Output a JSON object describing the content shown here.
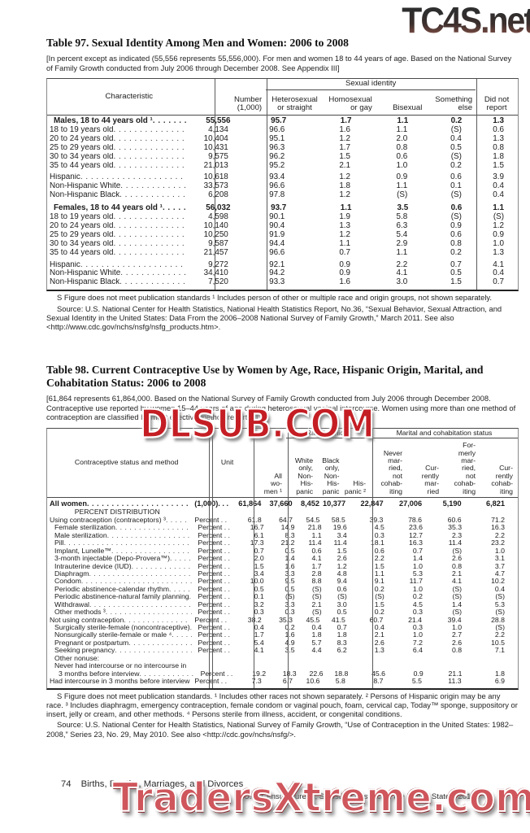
{
  "watermarks": {
    "top": "TC4S.net",
    "middle": "DLSUB.COM",
    "bottom": "TradersXtreme.com"
  },
  "table97": {
    "title": "Table 97. Sexual Identity Among Men and Women: 2006 to 2008",
    "note": "[In percent except as indicated (55,556 represents 55,556,000). For men and women 18 to 44 years of age. Based on the National Survey of Family Growth conducted from July 2006 through December 2008. See Appendix III]",
    "header": {
      "characteristic": "Characteristic",
      "number": "Number\n(1,000)",
      "group": "Sexual identity",
      "cols": [
        "Heterosexual\nor straight",
        "Homosexual\nor gay",
        "Bisexual",
        "Something\nelse"
      ],
      "didnot": "Did not\nreport"
    },
    "rows": [
      {
        "label": "Males, 18 to 44 years old ¹",
        "bold": true,
        "gap": false,
        "values": [
          "55,556",
          "95.7",
          "1.7",
          "1.1",
          "0.2",
          "1.3"
        ]
      },
      {
        "label": "18 to 19 years old",
        "bold": false,
        "gap": false,
        "values": [
          "4,134",
          "96.6",
          "1.6",
          "1.1",
          "(S)",
          "0.6"
        ]
      },
      {
        "label": "20 to 24 years old",
        "bold": false,
        "gap": false,
        "values": [
          "10,404",
          "95.1",
          "1.2",
          "2.0",
          "0.4",
          "1.3"
        ]
      },
      {
        "label": "25 to 29 years old",
        "bold": false,
        "gap": false,
        "values": [
          "10,431",
          "96.3",
          "1.7",
          "0.8",
          "0.5",
          "0.8"
        ]
      },
      {
        "label": "30 to 34 years old",
        "bold": false,
        "gap": false,
        "values": [
          "9,575",
          "96.2",
          "1.5",
          "0.6",
          "(S)",
          "1.8"
        ]
      },
      {
        "label": "35 to 44 years old",
        "bold": false,
        "gap": false,
        "values": [
          "21,013",
          "95.2",
          "2.1",
          "1.0",
          "0.2",
          "1.5"
        ]
      },
      {
        "label": "Hispanic",
        "bold": false,
        "gap": true,
        "values": [
          "10,618",
          "93.4",
          "1.2",
          "0.9",
          "0.6",
          "3.9"
        ]
      },
      {
        "label": "Non-Hispanic White",
        "bold": false,
        "gap": false,
        "values": [
          "33,573",
          "96.6",
          "1.8",
          "1.1",
          "0.1",
          "0.4"
        ]
      },
      {
        "label": "Non-Hispanic Black",
        "bold": false,
        "gap": false,
        "values": [
          "6,208",
          "97.8",
          "1.2",
          "(S)",
          "(S)",
          "0.4"
        ]
      },
      {
        "label": "Females, 18 to 44 years old ¹",
        "bold": true,
        "gap": true,
        "values": [
          "56,032",
          "93.7",
          "1.1",
          "3.5",
          "0.6",
          "1.1"
        ]
      },
      {
        "label": "18 to 19 years old",
        "bold": false,
        "gap": false,
        "values": [
          "4,598",
          "90.1",
          "1.9",
          "5.8",
          "(S)",
          "(S)"
        ]
      },
      {
        "label": "20 to 24 years old",
        "bold": false,
        "gap": false,
        "values": [
          "10,140",
          "90.4",
          "1.3",
          "6.3",
          "0.9",
          "1.2"
        ]
      },
      {
        "label": "25 to 29 years old",
        "bold": false,
        "gap": false,
        "values": [
          "10,250",
          "91.9",
          "1.2",
          "5.4",
          "0.6",
          "0.9"
        ]
      },
      {
        "label": "30 to 34 years old",
        "bold": false,
        "gap": false,
        "values": [
          "9,587",
          "94.4",
          "1.1",
          "2.9",
          "0.8",
          "1.0"
        ]
      },
      {
        "label": "35 to 44 years old",
        "bold": false,
        "gap": false,
        "values": [
          "21,457",
          "96.6",
          "0.7",
          "1.1",
          "0.2",
          "1.3"
        ]
      },
      {
        "label": "Hispanic",
        "bold": false,
        "gap": true,
        "values": [
          "9,272",
          "92.1",
          "0.9",
          "2.2",
          "0.7",
          "4.1"
        ]
      },
      {
        "label": "Non-Hispanic White",
        "bold": false,
        "gap": false,
        "values": [
          "34,410",
          "94.2",
          "0.9",
          "4.1",
          "0.5",
          "0.4"
        ]
      },
      {
        "label": "Non-Hispanic Black",
        "bold": false,
        "gap": false,
        "values": [
          "7,520",
          "93.3",
          "1.6",
          "3.0",
          "1.5",
          "0.7"
        ]
      }
    ],
    "footnote1": "S Figure does not meet publication standards ¹ Includes person of other or multiple race and origin groups, not shown separately.",
    "footnote2": "Source: U.S. National Center for Health Statistics, National Health Statistics Report, No.36, “Sexual Behavior, Sexual Attraction, and Sexual Identity in the United States: Data From the 2006–2008 National Survey of Family Growth,” March 2011. See also <http://www.cdc.gov/nchs/nsfg/nsfg_products.htm>."
  },
  "table98": {
    "title": "Table 98. Current Contraceptive Use by Women by Age, Race, Hispanic Origin, Marital, and Cohabitation Status: 2006 to 2008",
    "note": "[61,864 represents 61,864,000. Based on the National Survey of Family Growth conducted from July 2006 through December 2008. Contraceptive use reported by women 15–44 years of age during heterosexual vaginal intercourse. Women using more than one method of contraception are classified by most effective method reported]",
    "header": {
      "label": "Contraceptive status and method",
      "unit": "Unit",
      "all_women": "All\nwo-\nmen ¹",
      "race_group": "Race/ethnicity",
      "race_cols": [
        "White\nonly,\nNon-\nHis-\npanic",
        "Black\nonly,\nNon-\nHis-\npanic",
        "His-\npanic ²"
      ],
      "marital_group": "Marital and cohabitation status",
      "marital_cols": [
        "Never\nmar-\nried,\nnot\ncohab-\niting",
        "Cur-\nrently\nmar-\nried",
        "For-\nmerly\nmar-\nried,\nnot\ncohab-\niting",
        "Cur-\nrently\ncohab-\niting"
      ]
    },
    "rows": [
      {
        "label": "All women",
        "unit": "(1,000). . .",
        "indent": 0,
        "bold": true,
        "center": false,
        "values": [
          "61,864",
          "37,660",
          "8,452",
          "10,377",
          "22,847",
          "27,006",
          "5,190",
          "6,821"
        ]
      },
      {
        "label": "PERCENT DISTRIBUTION",
        "unit": "",
        "indent": 0,
        "bold": false,
        "center": true,
        "values": []
      },
      {
        "label": "Using contraception (contraceptors) ³",
        "unit": "Percent . .",
        "indent": 0,
        "bold": false,
        "center": false,
        "values": [
          "61.8",
          "64.7",
          "54.5",
          "58.5",
          "39.3",
          "78.6",
          "60.6",
          "71.2"
        ]
      },
      {
        "label": "Female sterilization",
        "unit": "Percent . .",
        "indent": 1,
        "bold": false,
        "center": false,
        "values": [
          "16.7",
          "14.9",
          "21.8",
          "19.6",
          "4.5",
          "23.6",
          "35.3",
          "16.3"
        ]
      },
      {
        "label": "Male sterilization",
        "unit": "Percent . .",
        "indent": 1,
        "bold": false,
        "center": false,
        "values": [
          "6.1",
          "8.3",
          "1.1",
          "3.4",
          "0.3",
          "12.7",
          "2.3",
          "2.2"
        ]
      },
      {
        "label": "Pill",
        "unit": "Percent . .",
        "indent": 1,
        "bold": false,
        "center": false,
        "values": [
          "17.3",
          "21.2",
          "11.4",
          "11.4",
          "18.1",
          "16.3",
          "11.4",
          "23.2"
        ]
      },
      {
        "label": "Implant, Lunelle™",
        "unit": "Percent . .",
        "indent": 1,
        "bold": false,
        "center": false,
        "values": [
          "0.7",
          "0.5",
          "0.6",
          "1.5",
          "0.6",
          "0.7",
          "(S)",
          "1.0"
        ]
      },
      {
        "label": "3-month injectable (Depo-Provera™)",
        "unit": "Percent . .",
        "indent": 1,
        "bold": false,
        "center": false,
        "values": [
          "2.0",
          "1.4",
          "4.1",
          "2.6",
          "2.2",
          "1.4",
          "2.6",
          "3.1"
        ]
      },
      {
        "label": "Intrauterine device (IUD)",
        "unit": "Percent . .",
        "indent": 1,
        "bold": false,
        "center": false,
        "values": [
          "1.5",
          "1.6",
          "1.7",
          "1.2",
          "1.5",
          "1.0",
          "0.8",
          "3.7"
        ]
      },
      {
        "label": "Diaphragm",
        "unit": "Percent . .",
        "indent": 1,
        "bold": false,
        "center": false,
        "values": [
          "3.4",
          "3.3",
          "2.8",
          "4.8",
          "1.1",
          "5.3",
          "2.1",
          "4.7"
        ]
      },
      {
        "label": "Condom",
        "unit": "Percent . .",
        "indent": 1,
        "bold": false,
        "center": false,
        "values": [
          "10.0",
          "9.5",
          "8.8",
          "9.4",
          "9.1",
          "11.7",
          "4.1",
          "10.2"
        ]
      },
      {
        "label": "Periodic abstinence-calendar rhythm",
        "unit": "Percent . .",
        "indent": 1,
        "bold": false,
        "center": false,
        "values": [
          "0.5",
          "0.5",
          "(S)",
          "0.6",
          "0.2",
          "1.0",
          "(S)",
          "0.4"
        ]
      },
      {
        "label": "Periodic abstinence-natural family planning",
        "unit": "Percent . .",
        "indent": 1,
        "bold": false,
        "center": false,
        "values": [
          "0.1",
          "(S)",
          "(S)",
          "(S)",
          "(S)",
          "0.2",
          "(S)",
          "(S)"
        ]
      },
      {
        "label": "Withdrawal",
        "unit": "Percent . .",
        "indent": 1,
        "bold": false,
        "center": false,
        "values": [
          "3.2",
          "3.3",
          "2.1",
          "3.0",
          "1.5",
          "4.5",
          "1.4",
          "5.3"
        ]
      },
      {
        "label": "Other methods ³",
        "unit": "Percent . .",
        "indent": 1,
        "bold": false,
        "center": false,
        "values": [
          "0.3",
          "0.3",
          "(S)",
          "0.5",
          "0.2",
          "0.3",
          "(S)",
          "(S)"
        ]
      },
      {
        "label": "Not using contraception",
        "unit": "Percent . .",
        "indent": 0,
        "bold": false,
        "center": false,
        "values": [
          "38.2",
          "35.3",
          "45.5",
          "41.5",
          "60.7",
          "21.4",
          "39.4",
          "28.8"
        ]
      },
      {
        "label": "Surgically sterile-female (noncontraceptive)",
        "unit": "Percent . .",
        "indent": 1,
        "bold": false,
        "center": false,
        "values": [
          "0.4",
          "0.2",
          "0.4",
          "0.7",
          "0.4",
          "0.3",
          "1.0",
          "(S)"
        ]
      },
      {
        "label": "Nonsurgically sterile-female or male ⁴",
        "unit": "Percent . .",
        "indent": 1,
        "bold": false,
        "center": false,
        "values": [
          "1.7",
          "1.6",
          "1.8",
          "1.8",
          "2.1",
          "1.0",
          "2.7",
          "2.2"
        ]
      },
      {
        "label": "Pregnant or postpartum",
        "unit": "Percent . .",
        "indent": 1,
        "bold": false,
        "center": false,
        "values": [
          "5.4",
          "4.9",
          "5.7",
          "8.3",
          "2.6",
          "7.2",
          "2.6",
          "10.5"
        ]
      },
      {
        "label": "Seeking pregnancy",
        "unit": "Percent . .",
        "indent": 1,
        "bold": false,
        "center": false,
        "values": [
          "4.1",
          "3.5",
          "4.4",
          "6.2",
          "1.3",
          "6.4",
          "0.8",
          "7.1"
        ]
      },
      {
        "label": "Other nonuse:",
        "unit": "",
        "indent": 1,
        "bold": false,
        "center": false,
        "values": []
      },
      {
        "label": "Never had intercourse or no intercourse in",
        "unit": "",
        "indent": 1,
        "bold": false,
        "center": false,
        "values": []
      },
      {
        "label": "3 months before interview",
        "unit": "Percent . .",
        "indent": 2,
        "bold": false,
        "center": false,
        "values": [
          "19.2",
          "18.3",
          "22.6",
          "18.8",
          "45.6",
          "0.9",
          "21.1",
          "1.8"
        ]
      },
      {
        "label": "Had intercourse in 3 months before interview",
        "unit": "Percent . .",
        "indent": 0,
        "bold": false,
        "center": false,
        "values": [
          "7.3",
          "6.7",
          "10.6",
          "5.8",
          "8.7",
          "5.5",
          "11.3",
          "6.9"
        ]
      }
    ],
    "footnote1": "S Figure does not meet publication standards. ¹ Includes other races not shown separately. ² Persons of Hispanic origin may be any race. ³ Includes diaphragm, emergency contraception, female condom or vaginal pouch, foam, cervical cap, Today™ sponge, suppository or insert, jelly or cream, and other methods. ⁴ Persons sterile from illness, accident, or congenital conditions.",
    "footnote2": "Source: U.S. National Center for Health Statistics, National Survey of Family Growth, “Use of Contraception in the United States: 1982–2008,” Series 23, No. 29, May 2010. See also <http://cdc.gov/nchs/nsfg/>."
  },
  "footer": {
    "page_number": "74",
    "section": "Births, Deaths, Marriages, and Divorces",
    "source": "U.S. Census Bureau, Statistical Abstract of the United States: 2012"
  }
}
